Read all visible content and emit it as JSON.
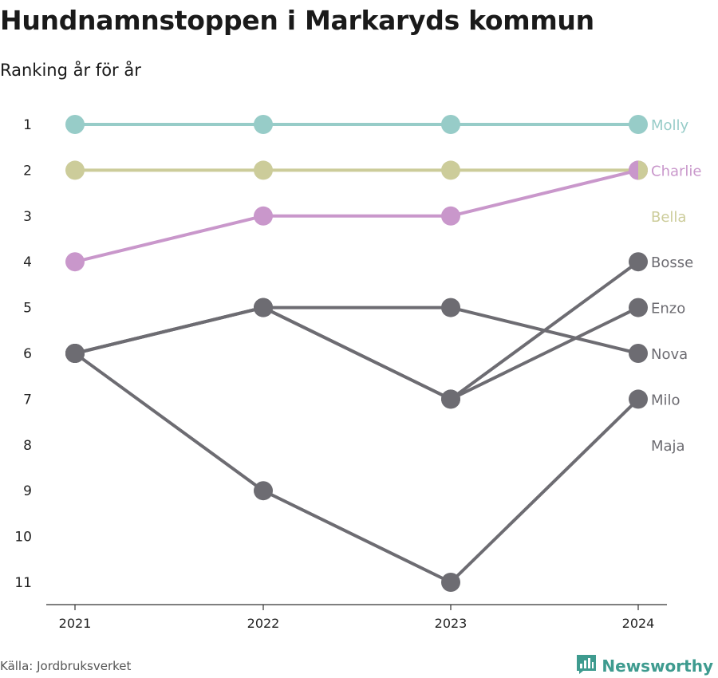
{
  "title": "Hundnamnstoppen i Markaryds kommun",
  "subtitle": "Ranking år för år",
  "source": "Källa: Jordbruksverket",
  "brand": {
    "name": "Newsworthy",
    "icon": "newsworthy-logo-icon",
    "color": "#3e9b8f"
  },
  "chart_data": {
    "type": "line",
    "x": [
      "2021",
      "2022",
      "2023",
      "2024"
    ],
    "y_ticks": [
      1,
      2,
      3,
      4,
      5,
      6,
      7,
      8,
      9,
      10,
      11
    ],
    "ylim": [
      11,
      1
    ],
    "y_inverted": true,
    "grid": false,
    "series": [
      {
        "name": "Molly",
        "values": [
          1,
          1,
          1,
          1
        ],
        "color": "#97ccc8",
        "label_rank": 1
      },
      {
        "name": "Bella",
        "values": [
          2,
          2,
          2,
          2
        ],
        "color": "#cccc9a",
        "label_rank": 3
      },
      {
        "name": "Charlie",
        "values": [
          4,
          3,
          3,
          2
        ],
        "color": "#c997cb",
        "label_rank": 2
      },
      {
        "name": "Bosse",
        "values": [
          6,
          5,
          7,
          4
        ],
        "color": "#6d6c72",
        "label_rank": 4
      },
      {
        "name": "Enzo",
        "values": [
          6,
          5,
          7,
          5
        ],
        "color": "#6d6c72",
        "label_rank": 5
      },
      {
        "name": "Nova",
        "values": [
          6,
          5,
          5,
          6
        ],
        "color": "#6d6c72",
        "label_rank": 6
      },
      {
        "name": "Milo",
        "values": [
          6,
          9,
          11,
          7
        ],
        "color": "#6d6c72",
        "label_rank": 7
      },
      {
        "name": "Maja",
        "values": [
          null,
          null,
          null,
          null
        ],
        "color": "#6d6c72",
        "label_rank": 8
      }
    ]
  }
}
